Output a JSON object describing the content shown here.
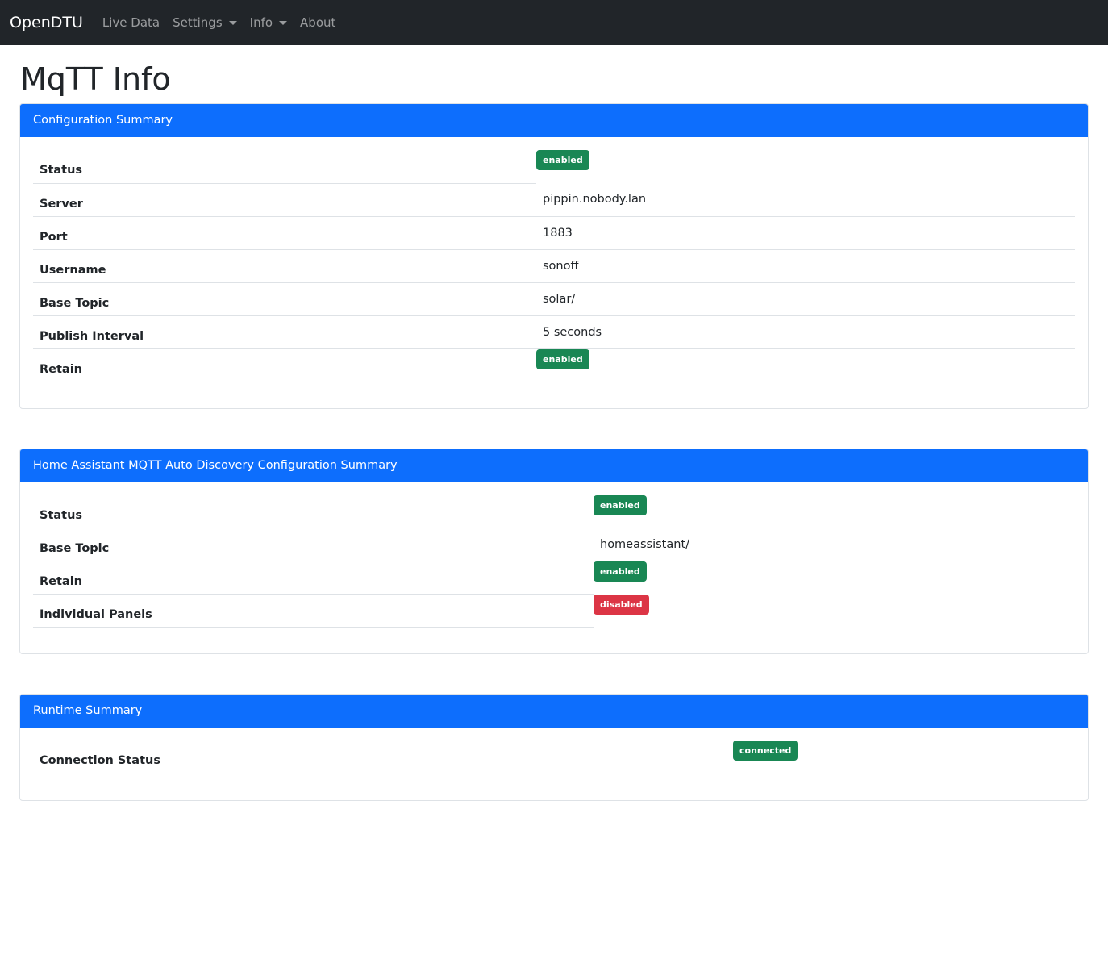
{
  "nav": {
    "brand": "OpenDTU",
    "items": [
      "Live Data",
      "Settings",
      "Info",
      "About"
    ]
  },
  "title": "MqTT Info",
  "colors": {
    "primary": "#0d6efd",
    "success": "#198754",
    "danger": "#dc3545",
    "navbar": "#212529"
  },
  "cards": [
    {
      "header": "Configuration Summary",
      "rows": [
        {
          "label": "Status",
          "badge": "enabled",
          "type": "success"
        },
        {
          "label": "Server",
          "value": "pippin.nobody.lan"
        },
        {
          "label": "Port",
          "value": "1883"
        },
        {
          "label": "Username",
          "value": "sonoff"
        },
        {
          "label": "Base Topic",
          "value": "solar/"
        },
        {
          "label": "Publish Interval",
          "value": "5 seconds"
        },
        {
          "label": "Retain",
          "badge": "enabled",
          "type": "success"
        }
      ]
    },
    {
      "header": "Home Assistant MQTT Auto Discovery Configuration Summary",
      "rows": [
        {
          "label": "Status",
          "badge": "enabled",
          "type": "success"
        },
        {
          "label": "Base Topic",
          "value": "homeassistant/"
        },
        {
          "label": "Retain",
          "badge": "enabled",
          "type": "success"
        },
        {
          "label": "Individual Panels",
          "badge": "disabled",
          "type": "danger"
        }
      ]
    },
    {
      "header": "Runtime Summary",
      "rows": [
        {
          "label": "Connection Status",
          "badge": "connected",
          "type": "success"
        }
      ]
    }
  ]
}
